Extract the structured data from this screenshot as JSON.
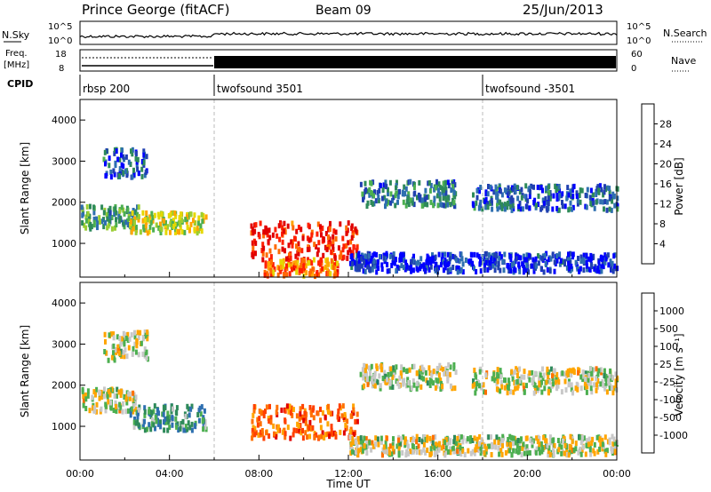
{
  "header": {
    "station": "Prince George (fitACF)",
    "beam": "Beam 09",
    "date": "25/Jun/2013"
  },
  "panels": {
    "nsky": {
      "left_label": "N.Sky",
      "left_ticks": [
        "10^5",
        "10^0"
      ],
      "right_ticks": [
        "10^5",
        "10^0"
      ],
      "right_label": "N.Search"
    },
    "freq": {
      "left_label_line1": "Freq.",
      "left_label_line2": "[MHz]",
      "left_ticks": [
        "18",
        "8"
      ],
      "right_ticks": [
        "60",
        "0"
      ],
      "right_label": "Nave"
    },
    "cpid": {
      "label": "CPID",
      "segments": [
        {
          "name": "rbsp 200",
          "start_h": 0
        },
        {
          "name": "twofsound 3501",
          "start_h": 6
        },
        {
          "name": "twofsound -3501",
          "start_h": 18
        }
      ]
    }
  },
  "chart_data": [
    {
      "type": "heatmap",
      "name": "power",
      "ylabel": "Slant Range [km]",
      "yticks": [
        "1000",
        "2000",
        "3000",
        "4000"
      ],
      "ylim": [
        180,
        4500
      ],
      "xlim": [
        0,
        24
      ],
      "colorbar": {
        "label": "Power [dB]",
        "ticks": [
          "28",
          "24",
          "20",
          "16",
          "12",
          "8",
          "4"
        ],
        "colors": [
          "#0000ff",
          "#2040b0",
          "#2e6fb0",
          "#2e8a5a",
          "#4caf50",
          "#9acd32",
          "#e5d800",
          "#ffa500",
          "#ff6a00",
          "#ff2000",
          "#e00000"
        ]
      },
      "echo_regions": [
        {
          "t0": 0.0,
          "t1": 2.6,
          "r0": 1350,
          "r1": 1900,
          "level": 0.35
        },
        {
          "t0": 2.2,
          "t1": 5.6,
          "r0": 1250,
          "r1": 1750,
          "level": 0.55
        },
        {
          "t0": 1.0,
          "t1": 3.0,
          "r0": 2600,
          "r1": 3300,
          "level": 0.2
        },
        {
          "t0": 7.6,
          "t1": 12.4,
          "r0": 600,
          "r1": 1500,
          "level": 0.9
        },
        {
          "t0": 8.2,
          "t1": 11.5,
          "r0": 200,
          "r1": 600,
          "level": 0.75
        },
        {
          "t0": 12.5,
          "t1": 16.8,
          "r0": 1900,
          "r1": 2500,
          "level": 0.25
        },
        {
          "t0": 17.5,
          "t1": 24.0,
          "r0": 1800,
          "r1": 2400,
          "level": 0.2
        },
        {
          "t0": 12.0,
          "t1": 24.0,
          "r0": 300,
          "r1": 750,
          "level": 0.1
        }
      ]
    },
    {
      "type": "heatmap",
      "name": "velocity",
      "ylabel": "Slant Range [km]",
      "yticks": [
        "1000",
        "2000",
        "3000",
        "4000"
      ],
      "ylim": [
        180,
        4500
      ],
      "xlim": [
        0,
        24
      ],
      "xlabel": "Time UT",
      "xticks": [
        "00:00",
        "04:00",
        "08:00",
        "12:00",
        "16:00",
        "20:00",
        "00:00"
      ],
      "colorbar": {
        "label": "Velocity [m s⁻¹]",
        "ticks": [
          "1000",
          "500",
          "100",
          "25",
          "-25",
          "-100",
          "-500",
          "-1000"
        ],
        "colors": [
          "#2040c0",
          "#2e6fb0",
          "#2e8a5a",
          "#4caf50",
          "#c8c8c8",
          "#ffa500",
          "#ff7000",
          "#ff4000",
          "#e00000"
        ]
      },
      "echo_regions": [
        {
          "t0": 0.0,
          "t1": 2.6,
          "r0": 1350,
          "r1": 1900,
          "level": 0.5
        },
        {
          "t0": 2.2,
          "t1": 5.6,
          "r0": 900,
          "r1": 1500,
          "level": 0.3
        },
        {
          "t0": 1.0,
          "t1": 3.0,
          "r0": 2600,
          "r1": 3300,
          "level": 0.5
        },
        {
          "t0": 7.6,
          "t1": 12.4,
          "r0": 700,
          "r1": 1500,
          "level": 0.75
        },
        {
          "t0": 12.5,
          "t1": 16.8,
          "r0": 1900,
          "r1": 2500,
          "level": 0.5
        },
        {
          "t0": 17.5,
          "t1": 24.0,
          "r0": 1800,
          "r1": 2400,
          "level": 0.5
        },
        {
          "t0": 12.0,
          "t1": 24.0,
          "r0": 300,
          "r1": 750,
          "level": 0.5
        }
      ]
    }
  ]
}
